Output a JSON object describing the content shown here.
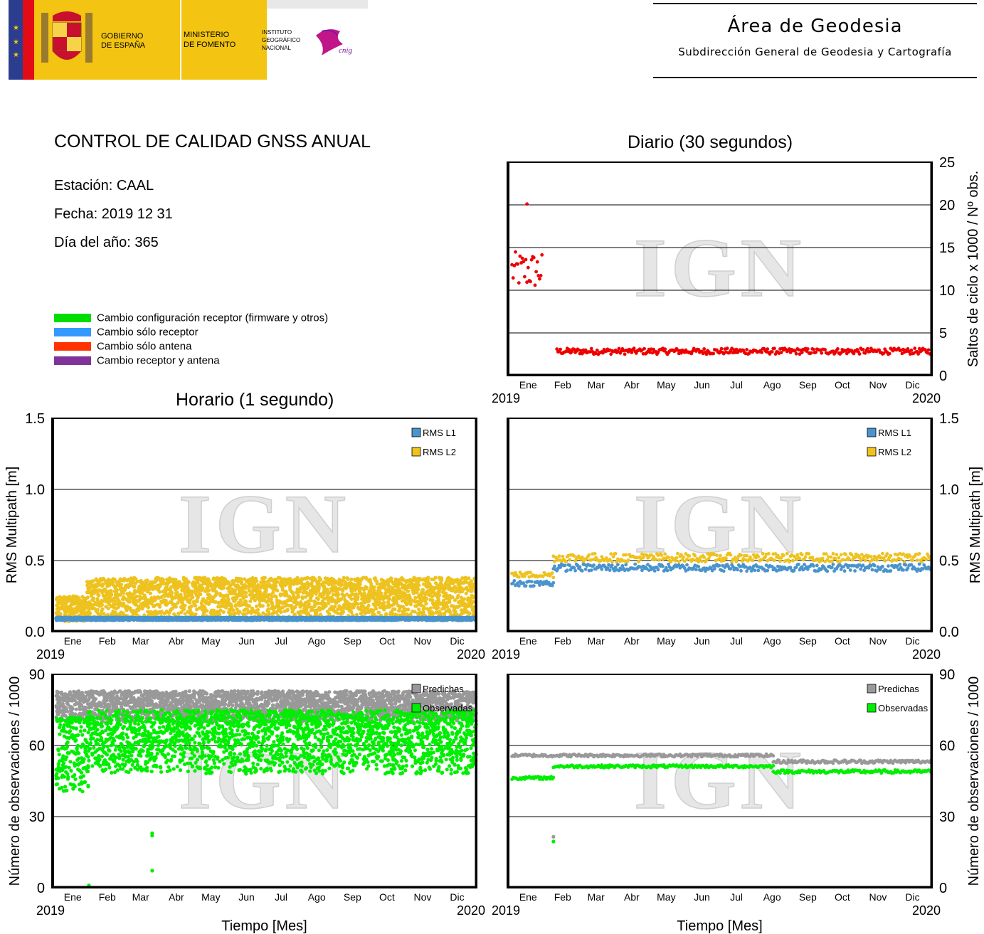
{
  "header": {
    "gov_line1": "GOBIERNO",
    "gov_line2": "DE ESPAÑA",
    "min_line1": "MINISTERIO",
    "min_line2": "DE FOMENTO",
    "ign_line1": "INSTITUTO",
    "ign_line2": "GEOGRÁFICO",
    "ign_line3": "NACIONAL",
    "cnig_logo_text": "cnig",
    "area_title": "Área de Geodesia",
    "area_subtitle": "Subdirección General de Geodesia y Cartografía"
  },
  "report": {
    "title": "CONTROL DE CALIDAD GNSS ANUAL",
    "station": "Estación: CAAL",
    "date": "Fecha: 2019 12 31",
    "doy": "Día del año: 365"
  },
  "legend": [
    {
      "label": "Cambio configuración receptor (firmware y otros)",
      "color": "#00dd00"
    },
    {
      "label": "Cambio sólo receptor",
      "color": "#3399ff"
    },
    {
      "label": "Cambio sólo antena",
      "color": "#ff3300"
    },
    {
      "label": "Cambio receptor y antena",
      "color": "#803399"
    }
  ],
  "sections": {
    "daily": "Diario (30 segundos)",
    "hourly": "Horario (1 segundo)"
  },
  "watermark": "IGN",
  "colors": {
    "red": "#ee0000",
    "l1": "#4a94cc",
    "l2": "#eec21f",
    "pred": "#999999",
    "obs": "#00ee00"
  },
  "chart_data": [
    {
      "id": "daily-cycle-slips",
      "type": "scatter",
      "ylabel": "Saltos de ciclo x 1000 / Nº obs.",
      "xlabel": "",
      "ylim": [
        0,
        25
      ],
      "yticks": [
        "0",
        "5",
        "10",
        "15",
        "20",
        "25"
      ],
      "months": [
        "Ene",
        "Feb",
        "Mar",
        "Abr",
        "May",
        "Jun",
        "Jul",
        "Ago",
        "Sep",
        "Oct",
        "Nov",
        "Dic"
      ],
      "x_start": "2019",
      "x_end": "2020",
      "grid": true,
      "series": [
        {
          "color": "#ee0000",
          "segments": [
            {
              "from_day": 1,
              "to_day": 27,
              "mean": 12.3,
              "spread": 2.2,
              "outliers": [
                [
                  14,
                  20.1
                ]
              ]
            },
            {
              "from_day": 40,
              "to_day": 365,
              "mean": 2.85,
              "spread": 0.35
            }
          ]
        }
      ]
    },
    {
      "id": "hourly-multipath",
      "type": "scatter",
      "ylabel": "RMS Multipath [m]",
      "xlabel": "",
      "ylim": [
        0,
        1.5
      ],
      "yticks": [
        "0.0",
        "0.5",
        "1.0",
        "1.5"
      ],
      "months": [
        "Ene",
        "Feb",
        "Mar",
        "Abr",
        "May",
        "Jun",
        "Jul",
        "Ago",
        "Sep",
        "Oct",
        "Nov",
        "Dic"
      ],
      "x_start": "2019",
      "x_end": "2020",
      "grid": true,
      "legend_entries": [
        "RMS L1",
        "RMS L2"
      ],
      "series": [
        {
          "name": "RMS L2",
          "color": "#eec21f",
          "segments": [
            {
              "from_day": 1,
              "to_day": 28,
              "min": 0.07,
              "max": 0.25
            },
            {
              "from_day": 28,
              "to_day": 365,
              "min": 0.08,
              "max": 0.38
            }
          ]
        },
        {
          "name": "RMS L1",
          "color": "#4a94cc",
          "segments": [
            {
              "from_day": 1,
              "to_day": 365,
              "min": 0.08,
              "max": 0.1
            }
          ]
        }
      ]
    },
    {
      "id": "daily-multipath",
      "type": "scatter",
      "ylabel": "RMS Multipath [m]",
      "xlabel": "",
      "ylim": [
        0,
        1.5
      ],
      "yticks": [
        "0.0",
        "0.5",
        "1.0",
        "1.5"
      ],
      "months": [
        "Ene",
        "Feb",
        "Mar",
        "Abr",
        "May",
        "Jun",
        "Jul",
        "Ago",
        "Sep",
        "Oct",
        "Nov",
        "Dic"
      ],
      "x_start": "2019",
      "x_end": "2020",
      "grid": true,
      "legend_entries": [
        "RMS L1",
        "RMS L2"
      ],
      "series": [
        {
          "name": "RMS L2",
          "color": "#eec21f",
          "segments": [
            {
              "from_day": 1,
              "to_day": 37,
              "mean": 0.4,
              "spread": 0.02
            },
            {
              "from_day": 37,
              "to_day": 365,
              "mean": 0.52,
              "spread": 0.03
            }
          ]
        },
        {
          "name": "RMS L1",
          "color": "#4a94cc",
          "segments": [
            {
              "from_day": 1,
              "to_day": 37,
              "mean": 0.34,
              "spread": 0.02
            },
            {
              "from_day": 37,
              "to_day": 365,
              "mean": 0.45,
              "spread": 0.025
            }
          ]
        }
      ]
    },
    {
      "id": "hourly-observations",
      "type": "scatter",
      "ylabel": "Número de observaciones / 1000",
      "xlabel": "Tiempo [Mes]",
      "ylim": [
        0,
        90
      ],
      "yticks": [
        "0",
        "30",
        "60",
        "90"
      ],
      "months": [
        "Ene",
        "Feb",
        "Mar",
        "Abr",
        "May",
        "Jun",
        "Jul",
        "Ago",
        "Sep",
        "Oct",
        "Nov",
        "Dic"
      ],
      "x_start": "2019",
      "x_end": "2020",
      "grid": true,
      "legend_entries": [
        "Predichas",
        "Observadas"
      ],
      "series": [
        {
          "name": "Predichas",
          "color": "#999999",
          "segments": [
            {
              "from_day": 1,
              "to_day": 365,
              "min": 70,
              "max": 83
            }
          ]
        },
        {
          "name": "Observadas",
          "color": "#00ee00",
          "segments": [
            {
              "from_day": 1,
              "to_day": 28,
              "min": 40,
              "max": 72
            },
            {
              "from_day": 28,
              "to_day": 365,
              "min": 48,
              "max": 75
            }
          ],
          "outliers": [
            [
              84,
              23
            ],
            [
              84,
              22
            ],
            [
              84,
              7.2
            ],
            [
              29,
              1
            ]
          ]
        }
      ]
    },
    {
      "id": "daily-observations",
      "type": "scatter",
      "ylabel": "Número de observaciones / 1000",
      "xlabel": "Tiempo [Mes]",
      "ylim": [
        0,
        90
      ],
      "yticks": [
        "0",
        "30",
        "60",
        "90"
      ],
      "months": [
        "Ene",
        "Feb",
        "Mar",
        "Abr",
        "May",
        "Jun",
        "Jul",
        "Ago",
        "Sep",
        "Oct",
        "Nov",
        "Dic"
      ],
      "x_start": "2019",
      "x_end": "2020",
      "grid": true,
      "legend_entries": [
        "Predichas",
        "Observadas"
      ],
      "series": [
        {
          "name": "Predichas",
          "color": "#999999",
          "segments": [
            {
              "from_day": 1,
              "to_day": 228,
              "mean": 55.8,
              "spread": 0.6
            },
            {
              "from_day": 228,
              "to_day": 365,
              "mean": 53.2,
              "spread": 0.7
            }
          ],
          "outliers": [
            [
              37,
              21.5
            ]
          ]
        },
        {
          "name": "Observadas",
          "color": "#00ee00",
          "segments": [
            {
              "from_day": 1,
              "to_day": 37,
              "mean": 46.3,
              "spread": 0.6
            },
            {
              "from_day": 37,
              "to_day": 228,
              "mean": 51.2,
              "spread": 0.6
            },
            {
              "from_day": 228,
              "to_day": 365,
              "mean": 49,
              "spread": 0.7
            }
          ],
          "outliers": [
            [
              37,
              19.5
            ]
          ]
        }
      ]
    }
  ]
}
